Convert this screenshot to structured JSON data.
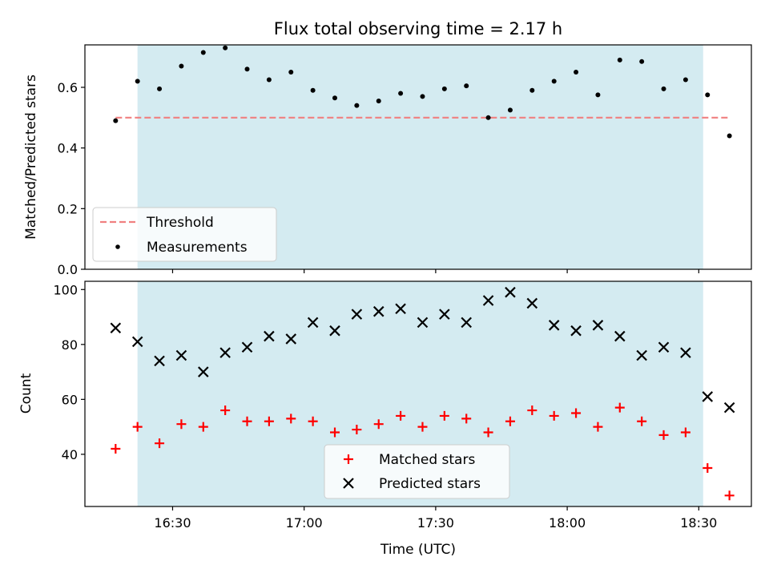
{
  "chart_data": [
    {
      "type": "scatter",
      "title": "Flux total observing time = 2.17 h",
      "ylabel": "Matched/Predicted stars",
      "xlabel": "",
      "ylim": [
        0,
        0.74
      ],
      "yticks": [
        0.0,
        0.2,
        0.4,
        0.6
      ],
      "ytick_labels": [
        "0.0",
        "0.2",
        "0.4",
        "0.6"
      ],
      "shaded_span": {
        "start": "16:22",
        "end": "18:31",
        "color": "#d4ebf1"
      },
      "legend_placement": "lower-left",
      "series": [
        {
          "name": "Threshold",
          "kind": "line",
          "style": "dashed",
          "color": "#f08080",
          "x": [
            "16:17",
            "18:37"
          ],
          "y": [
            0.5,
            0.5
          ]
        },
        {
          "name": "Measurements",
          "kind": "scatter",
          "marker": "dot",
          "color": "#000000",
          "x": [
            "16:17",
            "16:22",
            "16:27",
            "16:32",
            "16:37",
            "16:42",
            "16:47",
            "16:52",
            "16:57",
            "17:02",
            "17:07",
            "17:12",
            "17:17",
            "17:22",
            "17:27",
            "17:32",
            "17:37",
            "17:42",
            "17:47",
            "17:52",
            "17:57",
            "18:02",
            "18:07",
            "18:12",
            "18:17",
            "18:22",
            "18:27",
            "18:32",
            "18:37"
          ],
          "y": [
            0.49,
            0.62,
            0.595,
            0.67,
            0.715,
            0.73,
            0.66,
            0.625,
            0.65,
            0.59,
            0.565,
            0.54,
            0.555,
            0.58,
            0.57,
            0.595,
            0.605,
            0.5,
            0.525,
            0.59,
            0.62,
            0.65,
            0.575,
            0.69,
            0.685,
            0.595,
            0.625,
            0.575,
            0.44
          ]
        }
      ]
    },
    {
      "type": "scatter",
      "ylabel": "Count",
      "xlabel": "Time (UTC)",
      "ylim": [
        21,
        103
      ],
      "yticks": [
        40,
        60,
        80,
        100
      ],
      "ytick_labels": [
        "40",
        "60",
        "80",
        "100"
      ],
      "xticks": [
        "16:30",
        "17:00",
        "17:30",
        "18:00",
        "18:30"
      ],
      "xlim": [
        "16:10",
        "18:42"
      ],
      "shaded_span": {
        "start": "16:22",
        "end": "18:31",
        "color": "#d4ebf1"
      },
      "legend_placement": "lower-center",
      "series": [
        {
          "name": "Matched stars",
          "kind": "scatter",
          "marker": "plus",
          "color": "#ff0000",
          "x": [
            "16:17",
            "16:22",
            "16:27",
            "16:32",
            "16:37",
            "16:42",
            "16:47",
            "16:52",
            "16:57",
            "17:02",
            "17:07",
            "17:12",
            "17:17",
            "17:22",
            "17:27",
            "17:32",
            "17:37",
            "17:42",
            "17:47",
            "17:52",
            "17:57",
            "18:02",
            "18:07",
            "18:12",
            "18:17",
            "18:22",
            "18:27",
            "18:32",
            "18:37"
          ],
          "y": [
            42,
            50,
            44,
            51,
            50,
            56,
            52,
            52,
            53,
            52,
            48,
            49,
            51,
            54,
            50,
            54,
            53,
            48,
            52,
            56,
            54,
            55,
            50,
            57,
            52,
            47,
            48,
            35,
            25
          ]
        },
        {
          "name": "Predicted stars",
          "kind": "scatter",
          "marker": "x",
          "color": "#000000",
          "x": [
            "16:17",
            "16:22",
            "16:27",
            "16:32",
            "16:37",
            "16:42",
            "16:47",
            "16:52",
            "16:57",
            "17:02",
            "17:07",
            "17:12",
            "17:17",
            "17:22",
            "17:27",
            "17:32",
            "17:37",
            "17:42",
            "17:47",
            "17:52",
            "17:57",
            "18:02",
            "18:07",
            "18:12",
            "18:17",
            "18:22",
            "18:27",
            "18:32",
            "18:37"
          ],
          "y": [
            86,
            81,
            74,
            76,
            70,
            77,
            79,
            83,
            82,
            88,
            85,
            91,
            92,
            93,
            88,
            91,
            88,
            96,
            99,
            95,
            87,
            85,
            87,
            83,
            76,
            79,
            77,
            61,
            57
          ]
        }
      ]
    }
  ]
}
